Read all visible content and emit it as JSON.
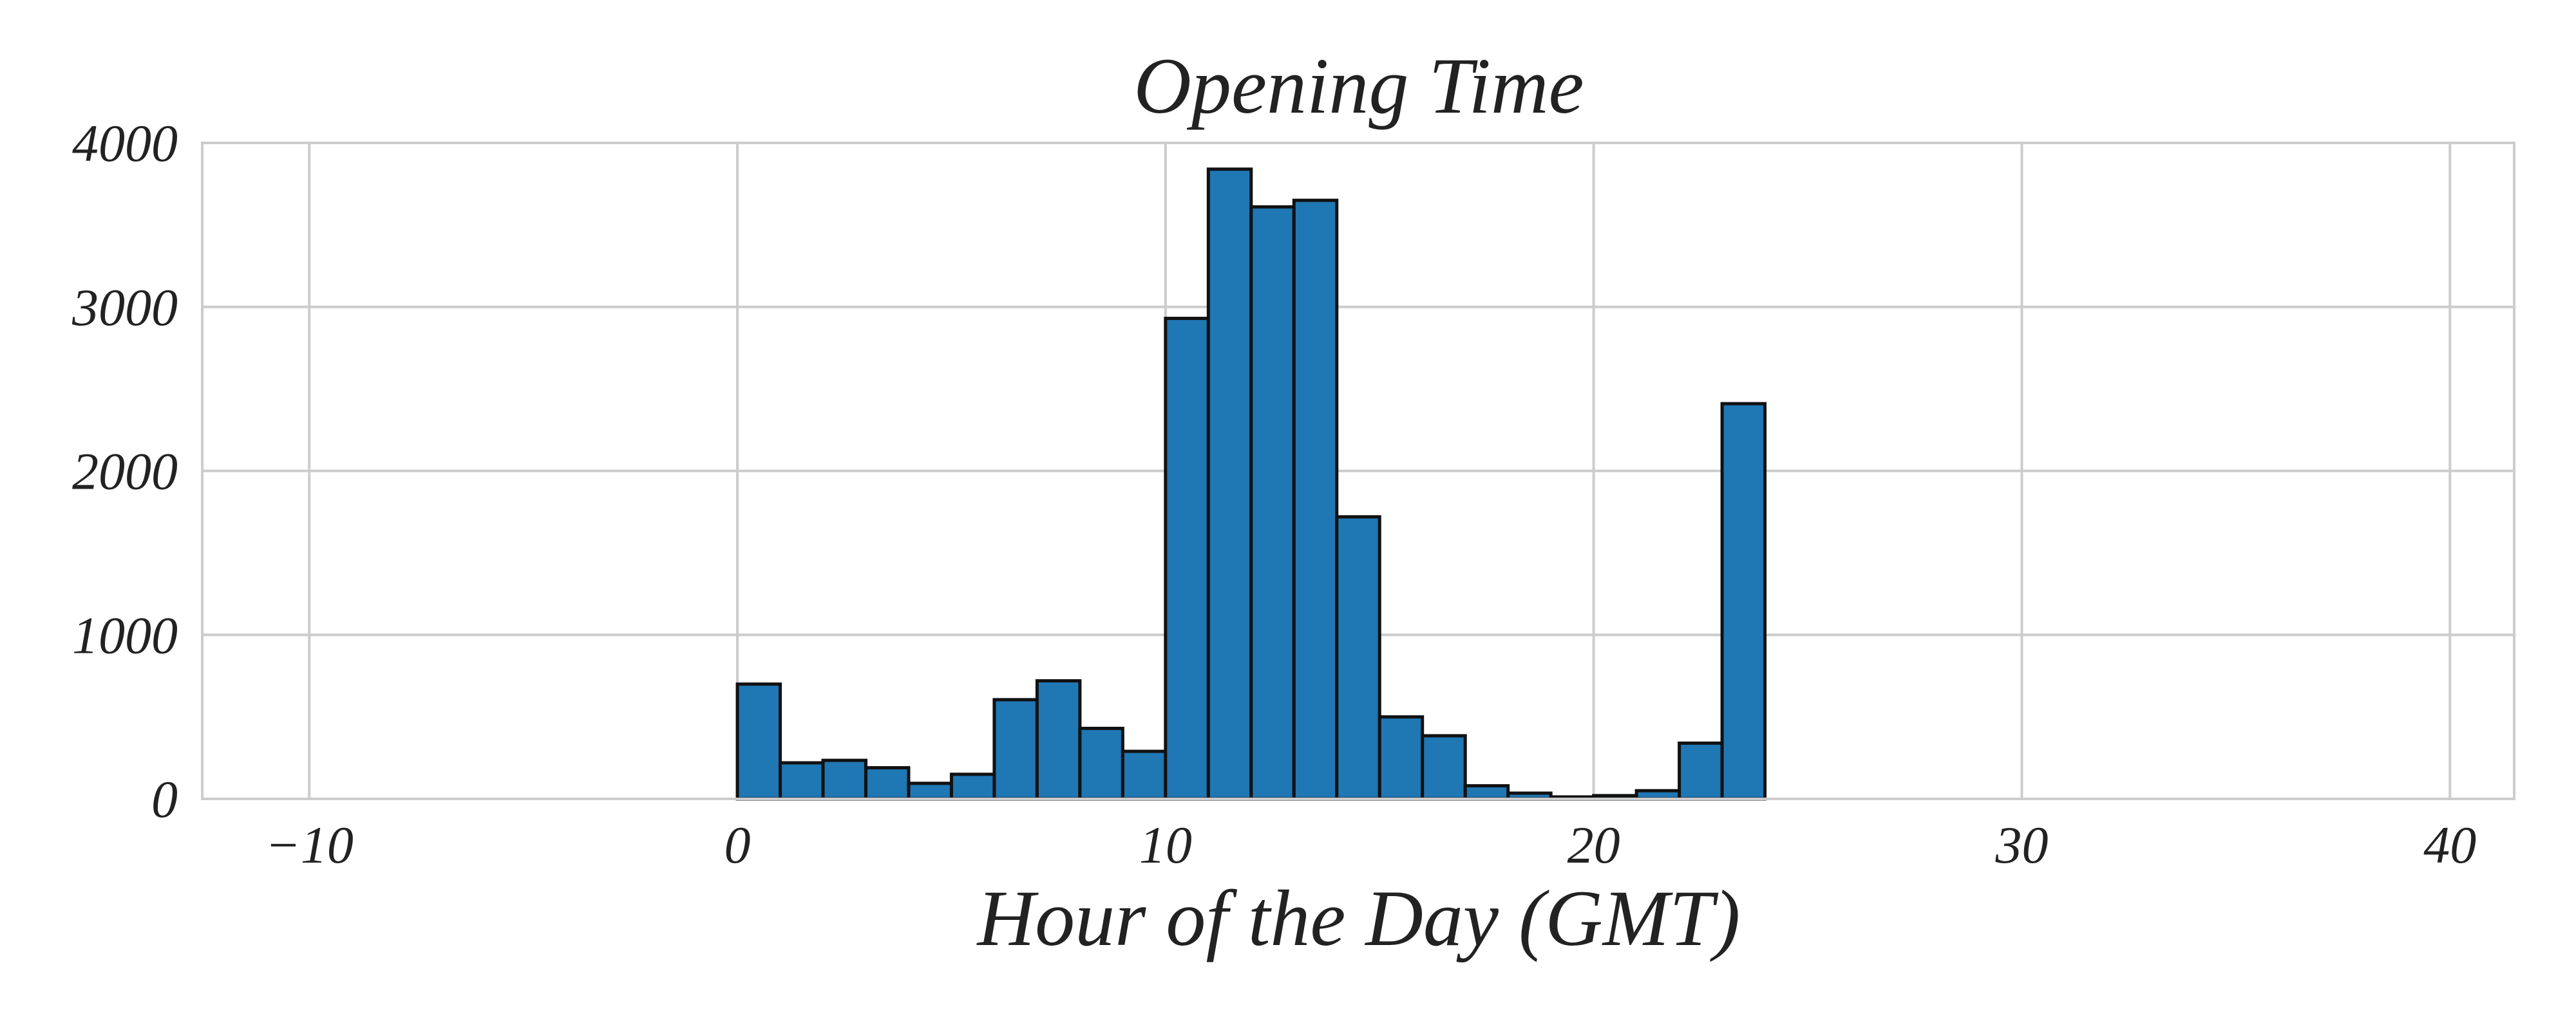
{
  "chart_data": {
    "type": "bar",
    "title": "Opening Time",
    "xlabel": "Hour of the Day (GMT)",
    "ylabel": "",
    "xlim": [
      -12.5,
      41.5
    ],
    "ylim": [
      0,
      4000
    ],
    "x_ticks": [
      -10,
      0,
      10,
      20,
      30,
      40
    ],
    "x_tick_labels": [
      "−10",
      "0",
      "10",
      "20",
      "30",
      "40"
    ],
    "y_ticks": [
      0,
      1000,
      2000,
      3000,
      4000
    ],
    "y_tick_labels": [
      "0",
      "1000",
      "2000",
      "3000",
      "4000"
    ],
    "grid": true,
    "bar_color": "#1f77b4",
    "edge_color": "#111111",
    "bins": [
      [
        -10,
        -9,
        0
      ],
      [
        -9,
        -8,
        0
      ],
      [
        -8,
        -7,
        0
      ],
      [
        -7,
        -6,
        0
      ],
      [
        -6,
        -5,
        0
      ],
      [
        -5,
        -4,
        0
      ],
      [
        -4,
        -3,
        0
      ],
      [
        -3,
        -2,
        0
      ],
      [
        -2,
        -1,
        0
      ],
      [
        -1,
        0,
        0
      ],
      [
        0,
        1,
        700
      ],
      [
        1,
        2,
        220
      ],
      [
        2,
        3,
        235
      ],
      [
        3,
        4,
        190
      ],
      [
        4,
        5,
        95
      ],
      [
        5,
        6,
        150
      ],
      [
        6,
        7,
        605
      ],
      [
        7,
        8,
        720
      ],
      [
        8,
        9,
        430
      ],
      [
        9,
        10,
        290
      ],
      [
        10,
        11,
        2930
      ],
      [
        11,
        12,
        3840
      ],
      [
        12,
        13,
        3610
      ],
      [
        13,
        14,
        3650
      ],
      [
        14,
        15,
        1720
      ],
      [
        15,
        16,
        500
      ],
      [
        16,
        17,
        385
      ],
      [
        17,
        18,
        80
      ],
      [
        18,
        19,
        35
      ],
      [
        19,
        20,
        12
      ],
      [
        20,
        21,
        20
      ],
      [
        21,
        22,
        50
      ],
      [
        22,
        23,
        340
      ],
      [
        23,
        24,
        2410
      ],
      [
        24,
        25,
        0
      ],
      [
        25,
        26,
        0
      ],
      [
        26,
        27,
        0
      ],
      [
        27,
        28,
        0
      ],
      [
        28,
        29,
        0
      ],
      [
        29,
        30,
        0
      ],
      [
        30,
        31,
        0
      ],
      [
        31,
        32,
        0
      ],
      [
        32,
        33,
        0
      ],
      [
        33,
        34,
        0
      ],
      [
        34,
        35,
        0
      ],
      [
        35,
        36,
        0
      ],
      [
        36,
        37,
        0
      ],
      [
        37,
        38,
        0
      ],
      [
        38,
        39,
        0
      ]
    ]
  }
}
